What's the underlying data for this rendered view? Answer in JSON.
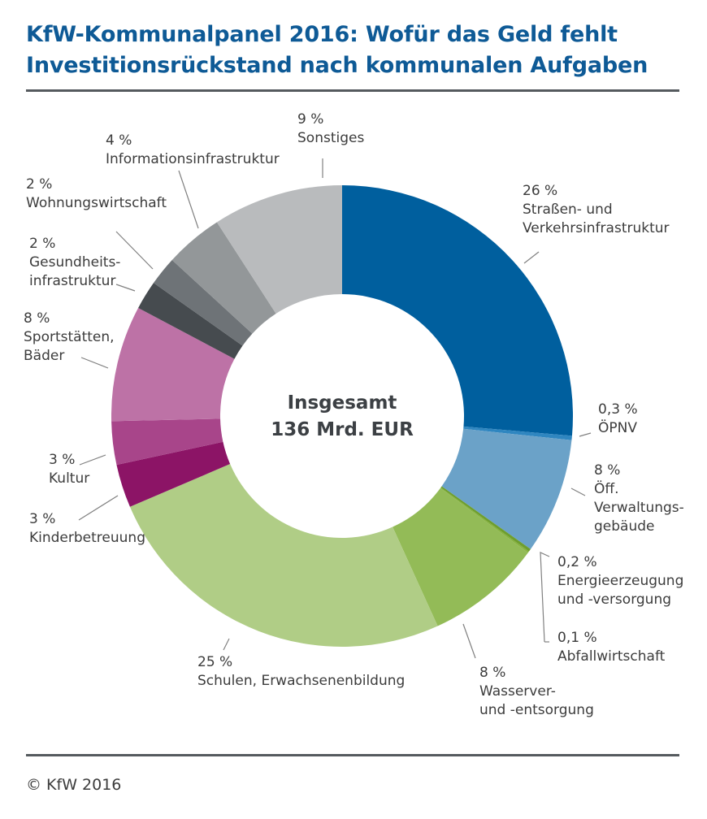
{
  "title_line1": "KfW-Kommunalpanel 2016: Wofür das Geld fehlt",
  "title_line2": "Investitionsrückstand nach kommunalen Aufgaben",
  "copyright": "© KfW 2016",
  "chart_data": {
    "type": "pie",
    "donut": true,
    "center_label": [
      "Insgesamt",
      "136 Mrd. EUR"
    ],
    "segments": [
      {
        "name": "Straßen- und Verkehrsinfrastruktur",
        "label_lines": [
          "26 %",
          "Straßen- und",
          "Verkehrsinfrastruktur"
        ],
        "value": 26.0,
        "color": "#005f9e"
      },
      {
        "name": "ÖPNV",
        "label_lines": [
          "0,3 %",
          "ÖPNV"
        ],
        "value": 0.3,
        "color": "#2f86c0"
      },
      {
        "name": "Öff. Verwaltungsgebäude",
        "label_lines": [
          "8 %",
          "Öff.",
          "Verwaltungs-",
          "gebäude"
        ],
        "value": 8.0,
        "color": "#6ba2c8"
      },
      {
        "name": "Energieerzeugung und -versorgung",
        "label_lines": [
          "0,2 %",
          "Energieerzeugung",
          "und -versorgung"
        ],
        "value": 0.2,
        "color": "#6e9e2e"
      },
      {
        "name": "Abfallwirtschaft",
        "label_lines": [
          "0,1 %",
          "Abfallwirtschaft"
        ],
        "value": 0.1,
        "color": "#86b23e"
      },
      {
        "name": "Wasserver- und -entsorgung",
        "label_lines": [
          "8 %",
          "Wasserver-",
          "und -entsorgung"
        ],
        "value": 8.0,
        "color": "#93bb57"
      },
      {
        "name": "Schulen, Erwachsenenbildung",
        "label_lines": [
          "25 %",
          "Schulen, Erwachsenenbildung"
        ],
        "value": 25.0,
        "color": "#b0cd86"
      },
      {
        "name": "Kinderbetreuung",
        "label_lines": [
          "3 %",
          "Kinderbetreuung"
        ],
        "value": 3.0,
        "color": "#8c1466"
      },
      {
        "name": "Kultur",
        "label_lines": [
          "3 %",
          "Kultur"
        ],
        "value": 3.0,
        "color": "#a8458a"
      },
      {
        "name": "Sportstätten, Bäder",
        "label_lines": [
          "8 %",
          "Sportstätten,",
          "Bäder"
        ],
        "value": 8.0,
        "color": "#bd72a6"
      },
      {
        "name": "Gesundheitsinfrastruktur",
        "label_lines": [
          "2 %",
          "Gesundheits-",
          "infrastruktur"
        ],
        "value": 2.0,
        "color": "#464b4f"
      },
      {
        "name": "Wohnungswirtschaft",
        "label_lines": [
          "2 %",
          "Wohnungswirtschaft"
        ],
        "value": 2.0,
        "color": "#6e7377"
      },
      {
        "name": "Informationsinfrastruktur",
        "label_lines": [
          "4 %",
          "Informationsinfrastruktur"
        ],
        "value": 4.0,
        "color": "#939799"
      },
      {
        "name": "Sonstiges",
        "label_lines": [
          "9 %",
          "Sonstiges"
        ],
        "value": 9.0,
        "color": "#b9bbbd"
      }
    ]
  }
}
